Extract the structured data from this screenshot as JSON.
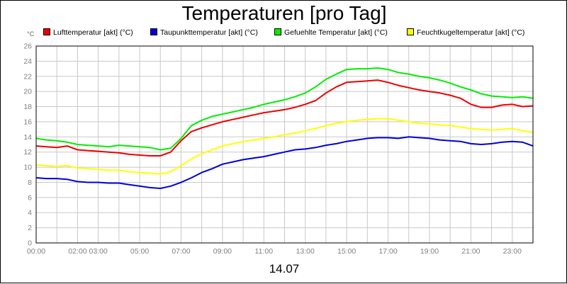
{
  "chart_data": {
    "type": "line",
    "title": "Temperaturen [pro Tag]",
    "unit_label": "°C",
    "xlabel": "14.07",
    "x_tick_labels": [
      "00:00",
      "02:00",
      "03:00",
      "05:00",
      "07:00",
      "09:00",
      "11:00",
      "13:00",
      "15:00",
      "17:00",
      "19:00",
      "21:00",
      "23:00"
    ],
    "x_tick_hours": [
      0,
      2,
      3,
      5,
      7,
      9,
      11,
      13,
      15,
      17,
      19,
      21,
      23
    ],
    "xlim": [
      0,
      24
    ],
    "ylim": [
      0,
      26
    ],
    "y_ticks": [
      0,
      2,
      4,
      6,
      8,
      10,
      12,
      14,
      16,
      18,
      20,
      22,
      24,
      26
    ],
    "grid": true,
    "legend_position": "top",
    "x": [
      0,
      0.5,
      1,
      1.5,
      2,
      2.5,
      3,
      3.5,
      4,
      4.5,
      5,
      5.5,
      6,
      6.5,
      7,
      7.5,
      8,
      8.5,
      9,
      9.5,
      10,
      10.5,
      11,
      11.5,
      12,
      12.5,
      13,
      13.5,
      14,
      14.5,
      15,
      15.5,
      16,
      16.5,
      17,
      17.5,
      18,
      18.5,
      19,
      19.5,
      20,
      20.5,
      21,
      21.5,
      22,
      22.5,
      23,
      23.5,
      24
    ],
    "series": [
      {
        "name": "Lufttemperatur [akt] (°C)",
        "color": "#ee0000",
        "values": [
          12.8,
          12.7,
          12.6,
          12.8,
          12.3,
          12.2,
          12.1,
          12.0,
          11.9,
          11.7,
          11.6,
          11.5,
          11.5,
          12.0,
          13.5,
          14.7,
          15.2,
          15.6,
          16.0,
          16.3,
          16.6,
          16.9,
          17.2,
          17.4,
          17.6,
          17.9,
          18.3,
          18.8,
          19.8,
          20.6,
          21.2,
          21.3,
          21.4,
          21.5,
          21.2,
          20.8,
          20.5,
          20.2,
          20.0,
          19.8,
          19.5,
          19.1,
          18.3,
          17.9,
          17.9,
          18.2,
          18.3,
          18.0,
          18.1
        ]
      },
      {
        "name": "Taupunkttemperatur [akt] (°C)",
        "color": "#0000dd",
        "values": [
          8.6,
          8.5,
          8.5,
          8.4,
          8.1,
          8.0,
          8.0,
          7.9,
          7.9,
          7.7,
          7.5,
          7.3,
          7.2,
          7.5,
          8.0,
          8.6,
          9.3,
          9.8,
          10.4,
          10.7,
          11.0,
          11.2,
          11.4,
          11.7,
          12.0,
          12.3,
          12.4,
          12.6,
          12.9,
          13.1,
          13.4,
          13.6,
          13.8,
          13.9,
          13.9,
          13.8,
          14.0,
          13.9,
          13.8,
          13.6,
          13.5,
          13.4,
          13.1,
          13.0,
          13.1,
          13.3,
          13.4,
          13.3,
          12.8
        ]
      },
      {
        "name": "Gefuehlte Temperatur [akt] (°C)",
        "color": "#00ee00",
        "values": [
          13.8,
          13.6,
          13.5,
          13.3,
          13.0,
          12.9,
          12.8,
          12.7,
          12.9,
          12.8,
          12.7,
          12.6,
          12.3,
          12.5,
          13.8,
          15.5,
          16.2,
          16.7,
          17.0,
          17.3,
          17.6,
          17.9,
          18.3,
          18.6,
          18.9,
          19.3,
          19.8,
          20.6,
          21.6,
          22.3,
          22.9,
          23.0,
          23.0,
          23.1,
          22.9,
          22.5,
          22.3,
          22.0,
          21.8,
          21.5,
          21.1,
          20.6,
          20.2,
          19.7,
          19.4,
          19.3,
          19.2,
          19.3,
          19.1
        ]
      },
      {
        "name": "Feuchtkugeltemperatur [akt] (°C)",
        "color": "#ffff00",
        "values": [
          10.3,
          10.2,
          10.1,
          10.2,
          9.9,
          9.8,
          9.7,
          9.6,
          9.6,
          9.4,
          9.3,
          9.2,
          9.1,
          9.4,
          10.2,
          11.1,
          11.8,
          12.3,
          12.8,
          13.1,
          13.4,
          13.6,
          13.8,
          14.0,
          14.3,
          14.5,
          14.8,
          15.1,
          15.5,
          15.8,
          16.0,
          16.2,
          16.3,
          16.4,
          16.4,
          16.2,
          16.0,
          15.8,
          15.7,
          15.6,
          15.5,
          15.3,
          15.1,
          15.0,
          14.9,
          15.0,
          15.1,
          14.8,
          14.6
        ]
      }
    ]
  }
}
